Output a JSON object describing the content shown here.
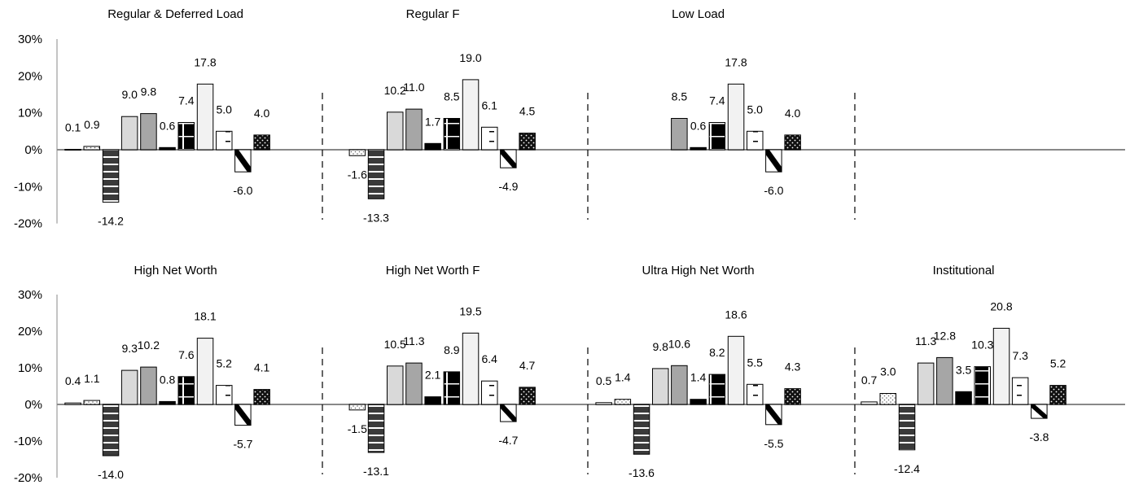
{
  "chart_data": [
    {
      "type": "bar",
      "title": "",
      "xlabel": "",
      "ylabel": "",
      "ylim": [
        -0.2,
        0.3
      ],
      "yticks": [
        "30%",
        "20%",
        "10%",
        "0%",
        "-10%",
        "-20%"
      ],
      "grid": false,
      "legend": "none",
      "bar_styles": [
        "white",
        "white-dots",
        "dark-stripes",
        "light-gray",
        "mid-gray",
        "solid-black",
        "black-cross",
        "very-light",
        "white-dash",
        "hatch",
        "black-dots"
      ],
      "panels": [
        {
          "title": "Regular & Deferred Load",
          "values": [
            0.1,
            0.9,
            -14.2,
            9.0,
            9.8,
            0.6,
            7.4,
            17.8,
            5.0,
            -6.0,
            4.0
          ]
        },
        {
          "title": "Regular F",
          "values": [
            null,
            -1.6,
            -13.3,
            10.2,
            11.0,
            1.7,
            8.5,
            19.0,
            6.1,
            -4.9,
            4.5
          ]
        },
        {
          "title": "Low Load",
          "values": [
            null,
            null,
            null,
            null,
            8.5,
            0.6,
            7.4,
            17.8,
            5.0,
            -6.0,
            4.0
          ]
        },
        {
          "title": "",
          "values": []
        }
      ]
    },
    {
      "type": "bar",
      "title": "",
      "xlabel": "",
      "ylabel": "",
      "ylim": [
        -0.2,
        0.3
      ],
      "yticks": [
        "30%",
        "20%",
        "10%",
        "0%",
        "-10%",
        "-20%"
      ],
      "grid": false,
      "legend": "none",
      "bar_styles": [
        "white",
        "white-dots",
        "dark-stripes",
        "light-gray",
        "mid-gray",
        "solid-black",
        "black-cross",
        "very-light",
        "white-dash",
        "hatch",
        "black-dots"
      ],
      "panels": [
        {
          "title": "High Net Worth",
          "values": [
            0.4,
            1.1,
            -14.0,
            9.3,
            10.2,
            0.8,
            7.6,
            18.1,
            5.2,
            -5.7,
            4.1
          ]
        },
        {
          "title": "High Net Worth F",
          "values": [
            null,
            -1.5,
            -13.1,
            10.5,
            11.3,
            2.1,
            8.9,
            19.5,
            6.4,
            -4.7,
            4.7
          ]
        },
        {
          "title": "Ultra High Net Worth",
          "values": [
            0.5,
            1.4,
            -13.6,
            9.8,
            10.6,
            1.4,
            8.2,
            18.6,
            5.5,
            -5.5,
            4.3
          ]
        },
        {
          "title": "Institutional",
          "values": [
            0.7,
            3.0,
            -12.4,
            11.3,
            12.8,
            3.5,
            10.3,
            20.8,
            7.3,
            -3.8,
            5.2
          ]
        }
      ]
    }
  ]
}
